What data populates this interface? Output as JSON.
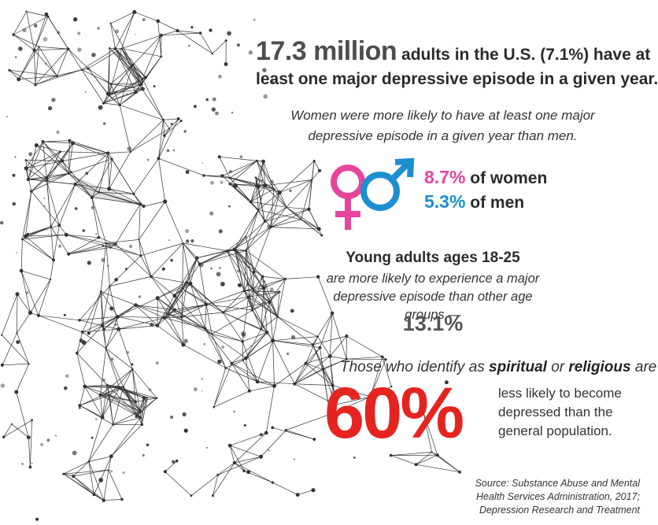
{
  "headline": {
    "number": "17.3 million",
    "line1_rest": " adults in the U.S. (7.1%) have at",
    "line2": "least one major depressive episode in a given year."
  },
  "gender": {
    "note_line1": "Women were more likely to have at least one major",
    "note_line2": "depressive episode in a given year than men.",
    "women_pct": "8.7%",
    "women_label": " of women",
    "men_pct": "5.3%",
    "men_label": " of men",
    "icons": [
      "female-symbol-icon",
      "male-symbol-icon"
    ],
    "colors": {
      "women": "#e6459b",
      "men": "#1c8fd0"
    }
  },
  "young_adults": {
    "title": "Young adults ages 18-25",
    "body": "are more likely to experience a major depressive episode than other age groups —",
    "pct": "13.1%"
  },
  "spiritual": {
    "prefix": "Those who identify as ",
    "word1": "spiritual",
    "middle": " or ",
    "word2": "religious",
    "suffix": " are",
    "big_pct": "60%",
    "rest": "less likely to become depressed than the general population.",
    "color": "#e52420"
  },
  "source": "Source: Substance Abuse and Mental Health Services Administration, 2017; Depression Research and Treatment",
  "illustration": "low-poly-figure-illustration"
}
